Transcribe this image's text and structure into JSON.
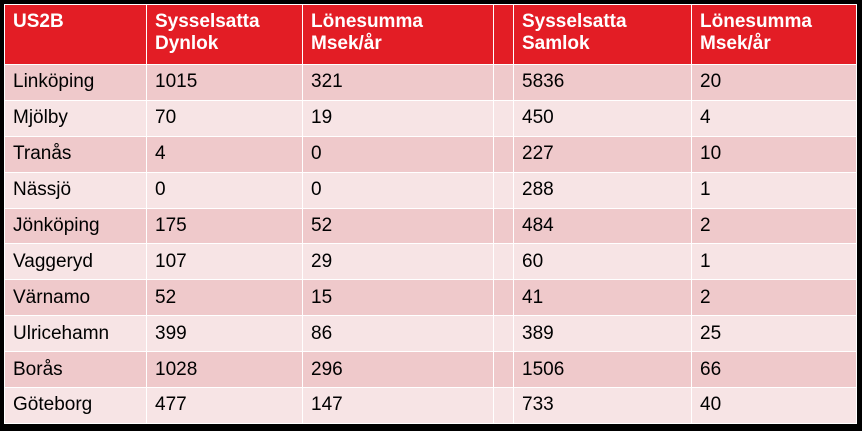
{
  "table": {
    "header": [
      "US2B",
      "Sysselsatta\nDynlok",
      "Lönesumma\nMsek/år",
      "Sysselsatta\nSamlok",
      "Lönesumma\nMsek/år"
    ],
    "rows": [
      [
        "Linköping",
        1015,
        321,
        5836,
        20
      ],
      [
        "Mjölby",
        70,
        19,
        450,
        4
      ],
      [
        "Tranås",
        4,
        0,
        227,
        10
      ],
      [
        "Nässjö",
        0,
        0,
        288,
        1
      ],
      [
        "Jönköping",
        175,
        52,
        484,
        2
      ],
      [
        "Vaggeryd",
        107,
        29,
        60,
        1
      ],
      [
        "Värnamo",
        52,
        15,
        41,
        2
      ],
      [
        "Ulricehamn",
        399,
        86,
        389,
        25
      ],
      [
        "Borås",
        1028,
        296,
        1506,
        66
      ],
      [
        "Göteborg",
        477,
        147,
        733,
        40
      ]
    ]
  }
}
